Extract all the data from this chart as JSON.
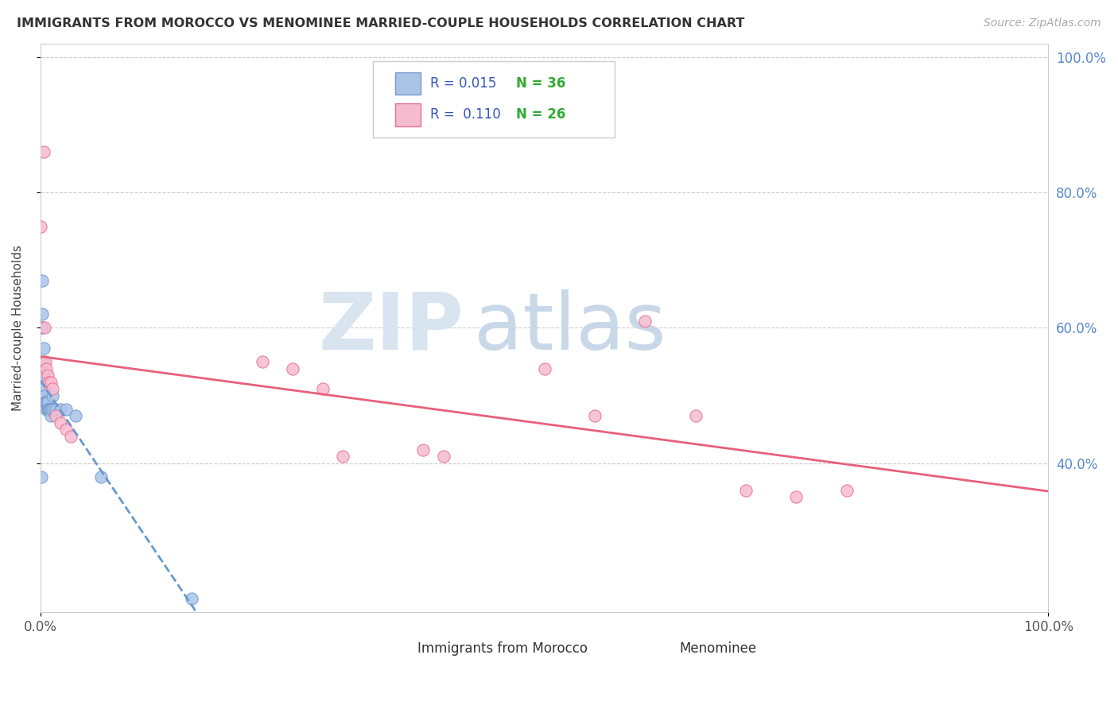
{
  "title": "IMMIGRANTS FROM MOROCCO VS MENOMINEE MARRIED-COUPLE HOUSEHOLDS CORRELATION CHART",
  "source": "Source: ZipAtlas.com",
  "ylabel": "Married-couple Households",
  "series1_name": "Immigrants from Morocco",
  "series2_name": "Menominee",
  "series1_color": "#aac4e8",
  "series2_color": "#f5bcd0",
  "series1_edge_color": "#7799cc",
  "series2_edge_color": "#e87090",
  "series1_line_color": "#6699cc",
  "series2_line_color": "#e8607a",
  "series1_line_style": "--",
  "series2_line_style": "-",
  "series1_R": 0.015,
  "series1_N": 36,
  "series2_R": 0.11,
  "series2_N": 26,
  "xlim": [
    0.0,
    1.0
  ],
  "ylim": [
    0.18,
    1.02
  ],
  "yticks": [
    0.4,
    0.6,
    0.8,
    1.0
  ],
  "ytick_labels": [
    "40.0%",
    "60.0%",
    "80.0%",
    "100.0%"
  ],
  "xticks": [
    0.0,
    1.0
  ],
  "xtick_labels": [
    "0.0%",
    "100.0%"
  ],
  "background_color": "#ffffff",
  "grid_color": "#cccccc",
  "legend_R_color": "#3355bb",
  "legend_N_color": "#33aa33",
  "watermark_zip_color": "#d8e4f0",
  "watermark_atlas_color": "#c8d8e8",
  "series1_x": [
    0.002,
    0.002,
    0.002,
    0.003,
    0.003,
    0.003,
    0.003,
    0.004,
    0.004,
    0.005,
    0.005,
    0.005,
    0.005,
    0.006,
    0.006,
    0.006,
    0.007,
    0.007,
    0.007,
    0.008,
    0.008,
    0.009,
    0.009,
    0.01,
    0.01,
    0.011,
    0.012,
    0.013,
    0.015,
    0.02,
    0.025,
    0.035,
    0.06,
    0.15,
    0.001,
    0.001
  ],
  "series1_y": [
    0.67,
    0.62,
    0.6,
    0.57,
    0.55,
    0.53,
    0.51,
    0.5,
    0.5,
    0.49,
    0.49,
    0.49,
    0.49,
    0.49,
    0.49,
    0.48,
    0.49,
    0.49,
    0.48,
    0.48,
    0.48,
    0.48,
    0.48,
    0.48,
    0.47,
    0.48,
    0.5,
    0.48,
    0.48,
    0.48,
    0.48,
    0.47,
    0.38,
    0.2,
    0.6,
    0.38
  ],
  "series2_x": [
    0.003,
    0.004,
    0.005,
    0.006,
    0.007,
    0.008,
    0.01,
    0.012,
    0.015,
    0.02,
    0.025,
    0.03,
    0.22,
    0.25,
    0.28,
    0.3,
    0.38,
    0.4,
    0.5,
    0.55,
    0.6,
    0.65,
    0.7,
    0.75,
    0.8,
    0.0
  ],
  "series2_y": [
    0.86,
    0.6,
    0.55,
    0.54,
    0.53,
    0.52,
    0.52,
    0.51,
    0.47,
    0.46,
    0.45,
    0.44,
    0.55,
    0.54,
    0.51,
    0.41,
    0.42,
    0.41,
    0.54,
    0.47,
    0.61,
    0.47,
    0.36,
    0.35,
    0.36,
    0.75
  ]
}
